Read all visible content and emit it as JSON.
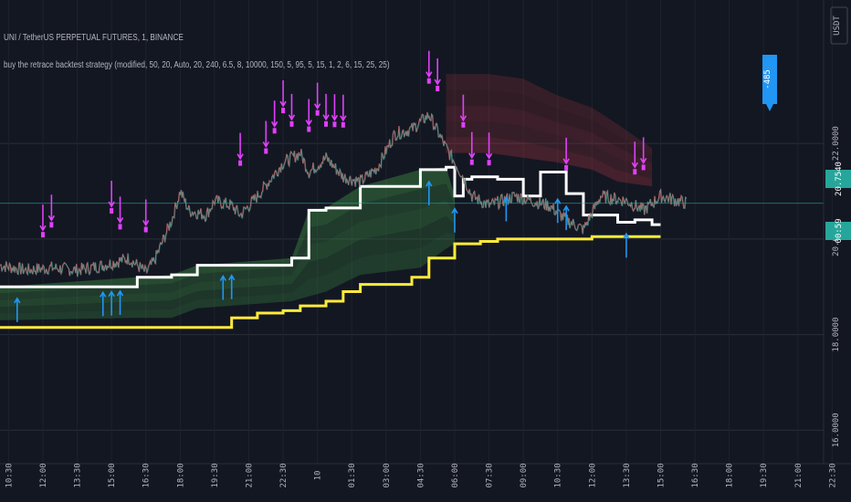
{
  "header": {
    "symbol_line": "UNI / TetherUS PERPETUAL FUTURES, 1, BINANCE",
    "strategy_line": "buy the retrace backtest strategy (modified, 50, 20, Auto, 20, 240, 6.5, 8, 10000, 150, 5, 95, 5, 15, 1, 2, 6, 15, 25, 25)"
  },
  "price_axis": {
    "currency": "USDT",
    "labels": [
      "22.0000",
      "20.0000",
      "18.0000",
      "16.0000"
    ],
    "last_price_tag": "20.7540",
    "secondary_tag": "00:59",
    "bubble_text": "-485",
    "colors": {
      "last": "#26a69a",
      "bubble": "#2196f3"
    }
  },
  "time_axis": {
    "labels": [
      "10:30",
      "12:00",
      "13:30",
      "15:00",
      "16:30",
      "18:00",
      "19:30",
      "21:00",
      "22:30",
      "10",
      "01:30",
      "03:00",
      "04:30",
      "06:00",
      "07:30",
      "09:00",
      "10:30",
      "12:00",
      "13:30",
      "15:00",
      "16:30",
      "18:00",
      "19:30",
      "21:00",
      "22:30"
    ]
  },
  "chart_data": {
    "type": "line",
    "ylim": [
      15.3,
      25.0
    ],
    "price_gridlines": [
      22.0,
      20.0,
      18.0,
      16.0
    ],
    "close_price": {
      "t": [
        0,
        3,
        6,
        9,
        12,
        15,
        17,
        18,
        20,
        21,
        22,
        24,
        25,
        27,
        28,
        30,
        33,
        35,
        36,
        38,
        40,
        42,
        44,
        46,
        48,
        50,
        52,
        54,
        55,
        57,
        60,
        62,
        64,
        66,
        68,
        70,
        73,
        75,
        77,
        80
      ],
      "v": [
        19.45,
        19.35,
        19.4,
        19.35,
        19.45,
        19.6,
        19.3,
        19.55,
        20.4,
        21.0,
        20.6,
        20.5,
        20.8,
        20.7,
        20.5,
        20.9,
        21.6,
        21.8,
        21.4,
        21.7,
        21.3,
        21.2,
        21.5,
        22.2,
        22.3,
        22.6,
        21.9,
        21.3,
        20.9,
        20.7,
        20.9,
        20.8,
        20.7,
        20.4,
        20.2,
        20.9,
        20.8,
        20.6,
        20.9,
        20.75
      ]
    },
    "white_line": {
      "t": [
        0,
        16,
        20,
        23,
        34,
        36,
        38,
        42,
        49,
        52,
        53,
        54,
        55,
        58,
        61,
        63,
        66,
        68,
        72,
        74,
        76
      ],
      "v": [
        19.0,
        19.2,
        19.25,
        19.45,
        19.6,
        20.6,
        20.65,
        21.1,
        21.45,
        21.5,
        20.9,
        21.25,
        21.3,
        21.25,
        20.9,
        21.4,
        20.95,
        20.5,
        20.35,
        20.4,
        20.3
      ]
    },
    "yellow_line": {
      "t": [
        0,
        20,
        27,
        30,
        33,
        35,
        38,
        40,
        42,
        48,
        50,
        53,
        56,
        58,
        60,
        63,
        66,
        69,
        72,
        76
      ],
      "v": [
        18.15,
        18.15,
        18.35,
        18.45,
        18.5,
        18.6,
        18.7,
        18.9,
        19.05,
        19.2,
        19.6,
        19.9,
        19.95,
        20.0,
        20.0,
        20.0,
        20.0,
        20.05,
        20.05,
        20.05
      ]
    },
    "green_band": {
      "t": [
        0,
        16,
        20,
        23,
        34,
        36,
        38,
        42,
        49,
        52,
        53
      ],
      "upper": [
        19.0,
        19.2,
        19.25,
        19.45,
        19.6,
        20.6,
        20.65,
        21.1,
        21.45,
        21.5,
        20.9
      ],
      "lower": [
        18.3,
        18.35,
        18.35,
        18.55,
        18.7,
        18.8,
        18.9,
        19.25,
        19.4,
        19.8,
        19.9
      ]
    },
    "red_band": {
      "t": [
        52,
        57,
        61,
        65,
        69,
        72,
        76
      ],
      "upper": [
        23.45,
        23.45,
        23.35,
        23.0,
        22.75,
        22.4,
        21.9
      ],
      "lower": [
        21.8,
        21.8,
        21.7,
        21.6,
        21.45,
        21.2,
        21.1
      ]
    },
    "buy_signals_t": [
      2,
      12,
      13,
      14,
      26,
      27,
      50,
      53,
      59,
      65,
      66,
      73
    ],
    "sell_signals_t": [
      5,
      6,
      13,
      14,
      17,
      28,
      31,
      32,
      33,
      34,
      36,
      37,
      38,
      39,
      40,
      50,
      51,
      54,
      55,
      57,
      66,
      74,
      75
    ]
  }
}
